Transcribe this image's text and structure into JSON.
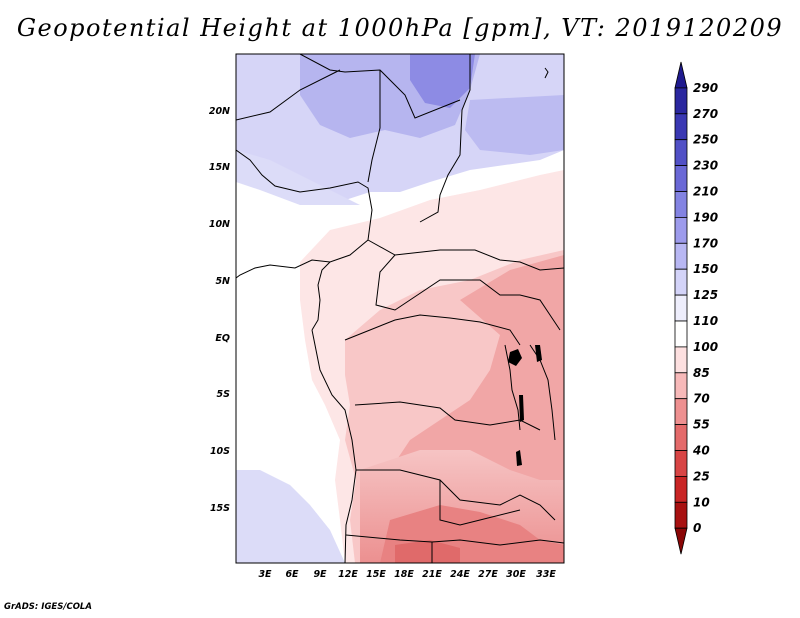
{
  "title": "Geopotential Height at 1000hPa [gpm], VT: 2019120209",
  "credit": "GrADS: IGES/COLA",
  "map": {
    "lat_labels": [
      "20N",
      "15N",
      "10N",
      "5N",
      "EQ",
      "5S",
      "10S",
      "15S"
    ],
    "lon_labels": [
      "3E",
      "6E",
      "9E",
      "12E",
      "15E",
      "18E",
      "21E",
      "24E",
      "27E",
      "30E",
      "33E"
    ]
  },
  "colorbar": {
    "labels": [
      "290",
      "270",
      "250",
      "230",
      "210",
      "190",
      "170",
      "150",
      "125",
      "110",
      "100",
      "85",
      "70",
      "55",
      "40",
      "25",
      "10",
      "0"
    ],
    "colors": [
      "#1f1a8e",
      "#2a279f",
      "#3a38b3",
      "#5150c6",
      "#6a68d6",
      "#8383e2",
      "#9d9bec",
      "#b8b7f3",
      "#d3d3f8",
      "#eeeefc",
      "#ffffff",
      "#fde0e0",
      "#f7b9b9",
      "#ee9090",
      "#e46a6a",
      "#d84545",
      "#c92525",
      "#a81111",
      "#8a0606"
    ]
  }
}
